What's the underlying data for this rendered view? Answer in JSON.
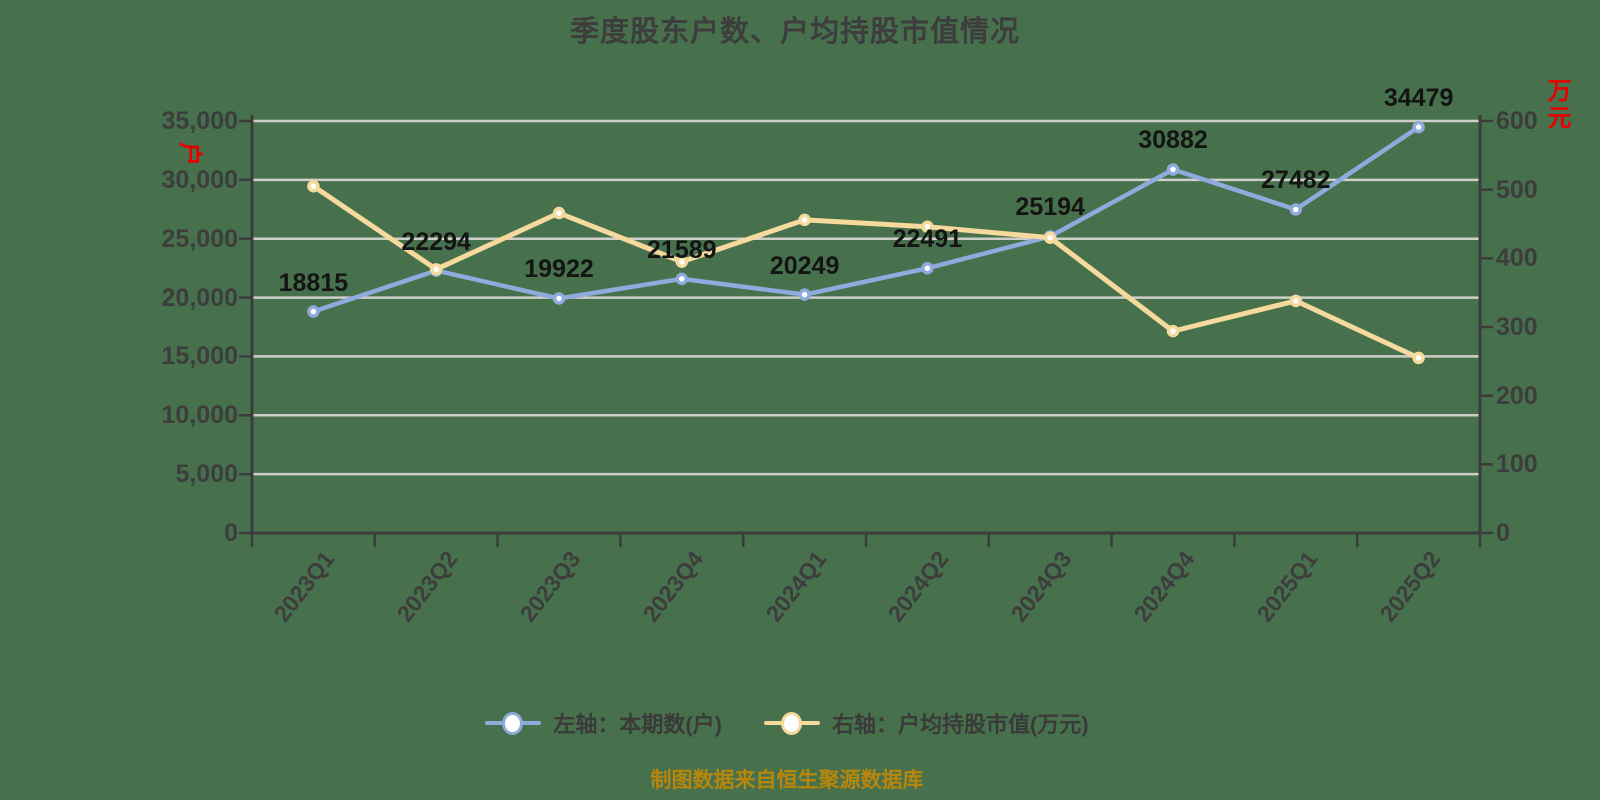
{
  "title": "季度股东户数、户均持股市值情况",
  "source_note": "制图数据来自恒生聚源数据库",
  "chart_data": {
    "type": "line",
    "title": "季度股东户数、户均持股市值情况",
    "categories": [
      "2023Q1",
      "2023Q2",
      "2023Q3",
      "2023Q4",
      "2024Q1",
      "2024Q2",
      "2024Q3",
      "2024Q4",
      "2025Q1",
      "2025Q2"
    ],
    "series": [
      {
        "name": "左轴：本期数(户)",
        "axis": "left",
        "color": "#8FAADC",
        "values": [
          18815,
          22294,
          19922,
          21589,
          20249,
          22491,
          25194,
          30882,
          27482,
          34479
        ],
        "show_labels": true
      },
      {
        "name": "右轴：户均持股市值(万元)",
        "axis": "right",
        "color": "#F6D99C",
        "values": [
          505,
          384,
          466,
          395,
          456,
          446,
          430,
          294,
          338,
          255
        ],
        "show_labels": false
      }
    ],
    "left_axis": {
      "min": 0,
      "max": 35000,
      "step": 5000,
      "unit": "户",
      "tick_labels": [
        "0",
        "5,000",
        "10,000",
        "15,000",
        "20,000",
        "25,000",
        "30,000",
        "35,000"
      ]
    },
    "right_axis": {
      "min": 0,
      "max": 600,
      "step": 100,
      "unit": "万元",
      "tick_labels": [
        "0",
        "100",
        "200",
        "300",
        "400",
        "500",
        "600"
      ]
    },
    "grid": true,
    "legend_position": "bottom",
    "x_label_rotation": -52
  },
  "colors": {
    "background": "#47714C",
    "gridline": "#CFCFC9",
    "axis": "#3C3C3C",
    "tick_text": "#3D3D3D",
    "data_label": "#141414",
    "marker_fill": "#FFFFFF",
    "unit_red": "#E80000",
    "source_text": "#B8860B"
  }
}
